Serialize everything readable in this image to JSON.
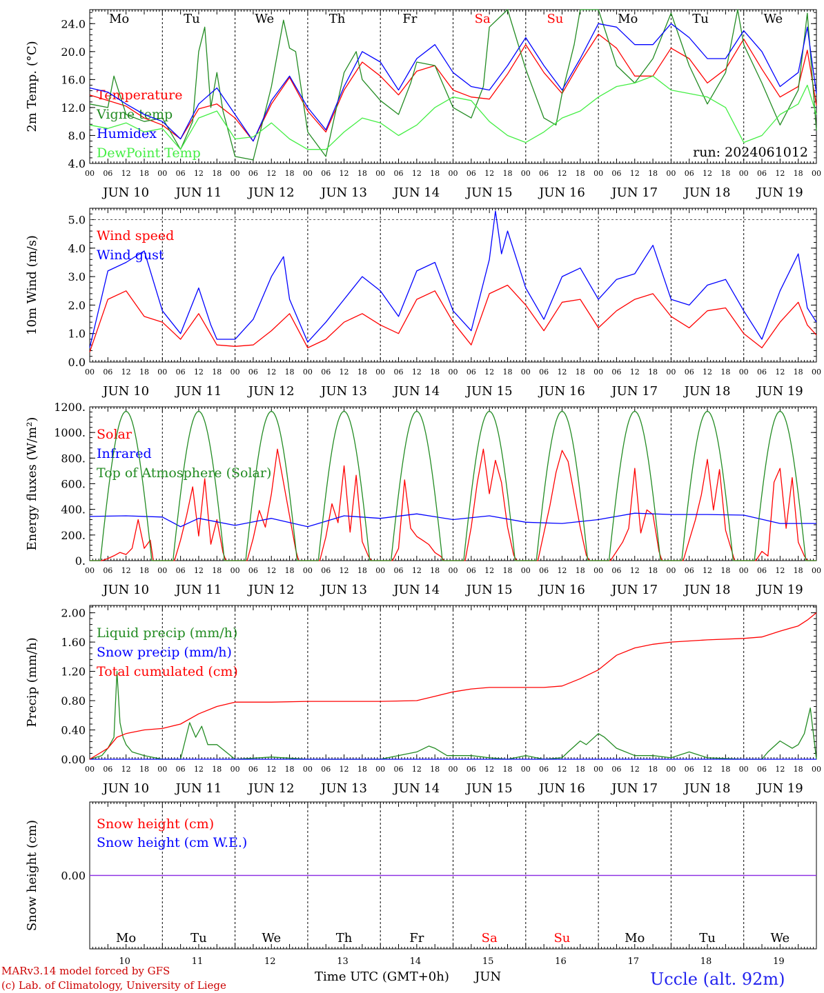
{
  "days": [
    "JUN 10",
    "JUN 11",
    "JUN 12",
    "JUN 13",
    "JUN 14",
    "JUN 15",
    "JUN 16",
    "JUN 17",
    "JUN 18",
    "JUN 19"
  ],
  "day_numbers": [
    "10",
    "11",
    "12",
    "13",
    "14",
    "15",
    "16",
    "17",
    "18",
    "19"
  ],
  "month_label": "JUN",
  "weekdays": [
    {
      "label": "Mo",
      "color": "#000000"
    },
    {
      "label": "Tu",
      "color": "#000000"
    },
    {
      "label": "We",
      "color": "#000000"
    },
    {
      "label": "Th",
      "color": "#000000"
    },
    {
      "label": "Fr",
      "color": "#000000"
    },
    {
      "label": "Sa",
      "color": "#ff0000"
    },
    {
      "label": "Su",
      "color": "#ff0000"
    },
    {
      "label": "Mo",
      "color": "#000000"
    },
    {
      "label": "Tu",
      "color": "#000000"
    },
    {
      "label": "We",
      "color": "#000000"
    }
  ],
  "hour_ticks": [
    "00",
    "06",
    "12",
    "18"
  ],
  "footer": {
    "model": "MARv3.14 model forced by GFS",
    "credit": "(c) Lab. of Climatology, University of Liege",
    "xaxis": "Time UTC (GMT+0h)",
    "station": "Uccle (alt. 92m)"
  },
  "chart_data": [
    {
      "type": "line",
      "id": "temp",
      "ylabel": "2m Temp. (°C)",
      "ylim": [
        4,
        26
      ],
      "yticks": [
        "4.0",
        "8.0",
        "12.0",
        "16.0",
        "20.0",
        "24.0"
      ],
      "ytick_values": [
        4,
        8,
        12,
        16,
        20,
        24
      ],
      "x_unit": "hours since JUN 10 00 UTC",
      "annotation": "run: 2024061012",
      "series": [
        {
          "name": "Temperature",
          "color": "#ff0000",
          "x": [
            0,
            6,
            12,
            18,
            24,
            30,
            36,
            42,
            48,
            54,
            60,
            66,
            72,
            78,
            84,
            90,
            96,
            102,
            108,
            114,
            120,
            126,
            132,
            138,
            144,
            150,
            156,
            162,
            168,
            174,
            180,
            186,
            192,
            198,
            204,
            210,
            216,
            222,
            228,
            234,
            237,
            240
          ],
          "values": [
            13.8,
            13,
            12.2,
            10.5,
            9.5,
            7.5,
            11.8,
            12.5,
            10.5,
            7.2,
            12.5,
            16.3,
            11.5,
            8.5,
            14.5,
            18.5,
            16.5,
            13.8,
            17.2,
            18,
            14.5,
            13.5,
            13.2,
            16.8,
            21,
            17,
            14,
            18.5,
            22.5,
            20.5,
            16.5,
            16.5,
            20.5,
            19,
            15.5,
            17.5,
            21.8,
            17.5,
            13.5,
            15,
            20.2,
            12.3
          ]
        },
        {
          "name": "Vigne temp",
          "color": "#228b22",
          "x": [
            0,
            6,
            8,
            12,
            18,
            24,
            30,
            34,
            36,
            38,
            40,
            42,
            44,
            48,
            54,
            60,
            64,
            66,
            68,
            72,
            78,
            84,
            88,
            90,
            96,
            102,
            106,
            108,
            114,
            120,
            126,
            130,
            132,
            138,
            144,
            150,
            154,
            156,
            160,
            162,
            168,
            174,
            180,
            186,
            192,
            198,
            204,
            210,
            214,
            216,
            222,
            228,
            234,
            237,
            240
          ],
          "values": [
            12.5,
            12,
            16.5,
            11,
            10,
            10.5,
            6,
            10,
            20,
            23.5,
            12,
            17,
            11.5,
            5,
            4.5,
            15,
            24.5,
            20.5,
            20,
            8.5,
            5,
            17,
            20,
            16,
            13,
            11,
            15.5,
            18.5,
            18,
            12,
            10.5,
            15,
            23.5,
            26,
            17.5,
            10.5,
            9.5,
            14,
            21,
            26,
            26,
            18,
            15.5,
            19,
            25.5,
            18,
            12.5,
            17,
            26,
            21,
            15.5,
            9.5,
            14.5,
            25.5,
            8.7
          ]
        },
        {
          "name": "Humidex",
          "color": "#0000ff",
          "x": [
            0,
            6,
            12,
            18,
            24,
            30,
            36,
            42,
            48,
            54,
            60,
            66,
            72,
            78,
            84,
            90,
            96,
            102,
            108,
            114,
            120,
            126,
            132,
            138,
            144,
            150,
            156,
            162,
            168,
            174,
            180,
            186,
            192,
            198,
            204,
            210,
            216,
            222,
            228,
            234,
            237,
            240
          ],
          "values": [
            14.8,
            14.2,
            12.5,
            11,
            10,
            7.5,
            12.5,
            14.8,
            11,
            7.2,
            13,
            16.5,
            12,
            8.8,
            15,
            20,
            18.5,
            14.5,
            19,
            21,
            17,
            15,
            14.5,
            18,
            22,
            18,
            14.5,
            19,
            24,
            23.5,
            21,
            21,
            24,
            22,
            19,
            19,
            23,
            20,
            15,
            17,
            23.5,
            14
          ]
        },
        {
          "name": "DewPoint Temp",
          "color": "#44ee44",
          "x": [
            0,
            6,
            12,
            18,
            24,
            30,
            36,
            42,
            48,
            54,
            60,
            66,
            72,
            78,
            84,
            90,
            96,
            102,
            108,
            114,
            120,
            126,
            132,
            138,
            144,
            150,
            156,
            162,
            168,
            174,
            180,
            186,
            192,
            198,
            204,
            210,
            216,
            222,
            228,
            234,
            237,
            240
          ],
          "values": [
            9.5,
            9,
            9.8,
            8.5,
            9,
            6,
            10.5,
            11.5,
            7.5,
            7.8,
            9.8,
            7.5,
            6,
            6,
            8.5,
            10.5,
            9.8,
            8,
            9.5,
            12,
            13.5,
            13,
            10,
            8,
            7,
            8.5,
            10.5,
            11.5,
            13.5,
            15,
            15.5,
            16.5,
            14.5,
            14,
            13.5,
            12,
            7,
            8,
            11,
            12.5,
            15.2,
            11
          ]
        }
      ]
    },
    {
      "type": "line",
      "id": "wind",
      "ylabel": "10m Wind (m/s)",
      "ylim": [
        0,
        5.4
      ],
      "yticks": [
        "0.0",
        "1.0",
        "2.0",
        "3.0",
        "4.0",
        "5.0"
      ],
      "ytick_values": [
        0,
        1,
        2,
        3,
        4,
        5
      ],
      "x_unit": "hours since JUN 10 00 UTC",
      "reference_line": 5.0,
      "series": [
        {
          "name": "Wind speed",
          "color": "#ff0000",
          "x": [
            0,
            6,
            12,
            18,
            24,
            30,
            36,
            42,
            48,
            54,
            60,
            66,
            72,
            78,
            84,
            90,
            96,
            102,
            108,
            114,
            120,
            126,
            132,
            138,
            144,
            150,
            156,
            162,
            168,
            174,
            180,
            186,
            192,
            198,
            204,
            210,
            216,
            222,
            228,
            234,
            237,
            240
          ],
          "values": [
            0.35,
            2.2,
            2.5,
            1.6,
            1.4,
            0.8,
            1.7,
            0.6,
            0.55,
            0.6,
            1.1,
            1.7,
            0.5,
            0.8,
            1.4,
            1.7,
            1.3,
            1.0,
            2.2,
            2.5,
            1.4,
            0.6,
            2.4,
            2.7,
            2.0,
            1.1,
            2.1,
            2.2,
            1.2,
            1.8,
            2.2,
            2.4,
            1.6,
            1.2,
            1.8,
            1.9,
            1.0,
            0.5,
            1.4,
            2.1,
            1.3,
            0.95
          ]
        },
        {
          "name": "Wind gust",
          "color": "#0000ff",
          "x": [
            0,
            6,
            12,
            18,
            24,
            30,
            36,
            40,
            42,
            48,
            54,
            60,
            64,
            66,
            72,
            78,
            84,
            90,
            96,
            102,
            108,
            114,
            120,
            126,
            132,
            134,
            136,
            138,
            144,
            150,
            156,
            162,
            168,
            174,
            180,
            186,
            192,
            198,
            204,
            210,
            216,
            222,
            228,
            234,
            237,
            240
          ],
          "values": [
            0.5,
            3.2,
            3.5,
            3.9,
            1.8,
            1.0,
            2.6,
            1.3,
            0.8,
            0.8,
            1.5,
            3.0,
            3.7,
            2.2,
            0.7,
            1.4,
            2.2,
            3.0,
            2.5,
            1.6,
            3.2,
            3.5,
            1.8,
            1.1,
            3.6,
            5.3,
            3.8,
            4.6,
            2.6,
            1.5,
            3.0,
            3.3,
            2.2,
            2.9,
            3.1,
            4.1,
            2.2,
            2.0,
            2.7,
            2.9,
            1.8,
            0.8,
            2.5,
            3.8,
            1.9,
            1.4
          ]
        }
      ]
    },
    {
      "type": "line",
      "id": "energy",
      "ylabel": "Energy fluxes (W/m²)",
      "ylim": [
        0,
        1200
      ],
      "yticks": [
        "0.",
        "200.",
        "400.",
        "600.",
        "800.",
        "1000.",
        "1200."
      ],
      "ytick_values": [
        0,
        200,
        400,
        600,
        800,
        1000,
        1200
      ],
      "x_unit": "hours since JUN 10 00 UTC",
      "series": [
        {
          "name": "Solar",
          "color": "#ff0000",
          "daily_peak": [
            320,
            640,
            870,
            740,
            630,
            870,
            860,
            720,
            790,
            720
          ]
        },
        {
          "name": "Infrared",
          "color": "#0000ff",
          "x": [
            0,
            12,
            24,
            30,
            36,
            48,
            60,
            72,
            84,
            96,
            108,
            120,
            132,
            144,
            156,
            168,
            180,
            192,
            204,
            216,
            228,
            240
          ],
          "values": [
            345,
            350,
            340,
            265,
            330,
            275,
            330,
            265,
            350,
            330,
            365,
            320,
            350,
            300,
            290,
            320,
            370,
            360,
            360,
            355,
            290,
            290
          ]
        },
        {
          "name": "Top of Atmosphere (Solar)",
          "color": "#228b22",
          "daily_peak": 1165
        }
      ]
    },
    {
      "type": "line",
      "id": "precip",
      "ylabel": "Precip (mm/h)",
      "ylim": [
        0,
        2.1
      ],
      "yticks": [
        "0.00",
        "0.40",
        "0.80",
        "1.20",
        "1.60",
        "2.00"
      ],
      "ytick_values": [
        0,
        0.4,
        0.8,
        1.2,
        1.6,
        2.0
      ],
      "x_unit": "hours since JUN 10 00 UTC",
      "series": [
        {
          "name": "Liquid precip (mm/h)",
          "color": "#228b22",
          "x": [
            0,
            4,
            6,
            8,
            9,
            10,
            11,
            12,
            14,
            18,
            24,
            30,
            33,
            35,
            37,
            39,
            42,
            48,
            60,
            72,
            96,
            108,
            112,
            114,
            118,
            120,
            126,
            132,
            138,
            144,
            150,
            156,
            158,
            162,
            164,
            168,
            170,
            174,
            180,
            186,
            192,
            198,
            204,
            216,
            222,
            224,
            228,
            232,
            234,
            236,
            238,
            240
          ],
          "values": [
            0,
            0.05,
            0.15,
            0.3,
            1.2,
            0.5,
            0.3,
            0.2,
            0.1,
            0.05,
            0,
            0,
            0.5,
            0.3,
            0.45,
            0.2,
            0.2,
            0,
            0.03,
            0,
            0,
            0.1,
            0.18,
            0.15,
            0.05,
            0.05,
            0.05,
            0.02,
            0,
            0.05,
            0,
            0.02,
            0.1,
            0.25,
            0.2,
            0.35,
            0.3,
            0.15,
            0.05,
            0.05,
            0.02,
            0.1,
            0.02,
            0,
            0,
            0.1,
            0.25,
            0.15,
            0.2,
            0.35,
            0.7,
            0
          ]
        },
        {
          "name": "Snow precip (mm/h)",
          "color": "#0000ff",
          "x": [
            0,
            240
          ],
          "values": [
            0,
            0
          ]
        },
        {
          "name": "Total cumulated (cm)",
          "color": "#ff0000",
          "x": [
            0,
            6,
            9,
            12,
            18,
            24,
            30,
            36,
            42,
            48,
            60,
            72,
            84,
            96,
            108,
            114,
            120,
            126,
            132,
            144,
            150,
            156,
            162,
            168,
            174,
            180,
            186,
            192,
            204,
            216,
            222,
            228,
            234,
            237,
            240
          ],
          "values": [
            0,
            0.15,
            0.3,
            0.35,
            0.4,
            0.42,
            0.48,
            0.62,
            0.72,
            0.78,
            0.78,
            0.79,
            0.79,
            0.79,
            0.8,
            0.86,
            0.92,
            0.96,
            0.98,
            0.98,
            0.98,
            1.0,
            1.1,
            1.22,
            1.42,
            1.52,
            1.57,
            1.6,
            1.63,
            1.65,
            1.67,
            1.75,
            1.82,
            1.9,
            2.0
          ]
        }
      ]
    },
    {
      "type": "line",
      "id": "snow",
      "ylabel": "Snow height (cm)",
      "ylim": [
        -1,
        1
      ],
      "yticks": [
        "0.00"
      ],
      "ytick_values": [
        0
      ],
      "x_unit": "hours since JUN 10 00 UTC",
      "series": [
        {
          "name": "Snow height (cm)",
          "color": "#ff0000",
          "x": [
            0,
            240
          ],
          "values": [
            0,
            0
          ]
        },
        {
          "name": "Snow height (cm W.E.)",
          "color": "#0000ff",
          "x": [
            0,
            240
          ],
          "values": [
            0,
            0
          ]
        }
      ]
    }
  ]
}
